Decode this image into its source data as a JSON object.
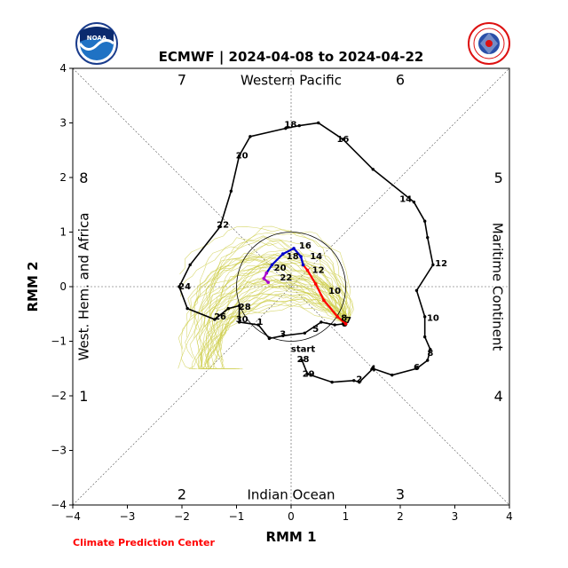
{
  "title": "ECMWF | 2024-04-08 to 2024-04-22",
  "credit": "Climate Prediction Center",
  "logos": {
    "left": "noaa-logo",
    "right": "national-weather-service-logo",
    "left_text": "NOAA"
  },
  "chart_data": {
    "type": "line",
    "title": "ECMWF | 2024-04-08 to 2024-04-22",
    "xlabel": "RMM 1",
    "ylabel": "RMM 2",
    "xlim": [
      -4,
      4
    ],
    "ylim": [
      -4,
      4
    ],
    "xticks": [
      -4,
      -3,
      -2,
      -1,
      0,
      1,
      2,
      3,
      4
    ],
    "yticks": [
      -4,
      -3,
      -2,
      -1,
      0,
      1,
      2,
      3,
      4
    ],
    "unit_circle_radius": 1,
    "region_labels": [
      "Western Pacific",
      "Maritime Continent",
      "Indian Ocean",
      "West. Hem. and Africa"
    ],
    "phase_labels": [
      {
        "phase": "1",
        "x": -3.8,
        "y": -2
      },
      {
        "phase": "2",
        "x": -2,
        "y": -3.8
      },
      {
        "phase": "3",
        "x": 2,
        "y": -3.8
      },
      {
        "phase": "4",
        "x": 3.8,
        "y": -2
      },
      {
        "phase": "5",
        "x": 3.8,
        "y": 2
      },
      {
        "phase": "6",
        "x": 2,
        "y": 3.8
      },
      {
        "phase": "7",
        "x": -2,
        "y": 3.8
      },
      {
        "phase": "8",
        "x": -3.8,
        "y": 2
      }
    ],
    "observed": {
      "color": "#000000",
      "start_label": "start",
      "points": [
        [
          0.2,
          -1.35
        ],
        [
          0.3,
          -1.6
        ],
        [
          0.75,
          -1.75
        ],
        [
          1.15,
          -1.72
        ],
        [
          1.25,
          -1.75
        ],
        [
          1.5,
          -1.5
        ],
        [
          1.85,
          -1.62
        ],
        [
          2.3,
          -1.5
        ],
        [
          2.5,
          -1.35
        ],
        [
          2.55,
          -1.15
        ],
        [
          2.45,
          -0.92
        ],
        [
          2.45,
          -0.55
        ],
        [
          2.3,
          -0.07
        ],
        [
          2.6,
          0.4
        ],
        [
          2.5,
          0.9
        ],
        [
          2.45,
          1.2
        ],
        [
          2.25,
          1.55
        ],
        [
          1.5,
          2.15
        ],
        [
          0.95,
          2.7
        ],
        [
          0.5,
          3.0
        ],
        [
          0.15,
          2.95
        ],
        [
          -0.1,
          2.9
        ],
        [
          -0.75,
          2.75
        ],
        [
          -0.95,
          2.4
        ],
        [
          -1.1,
          1.75
        ],
        [
          -1.3,
          1.1
        ],
        [
          -1.85,
          0.4
        ],
        [
          -2.05,
          0.0
        ],
        [
          -1.9,
          -0.4
        ],
        [
          -1.4,
          -0.6
        ],
        [
          -1.15,
          -0.4
        ],
        [
          -0.95,
          -0.35
        ],
        [
          -0.95,
          -0.65
        ],
        [
          -0.6,
          -0.7
        ],
        [
          -0.4,
          -0.95
        ],
        [
          -0.15,
          -0.9
        ],
        [
          0.25,
          -0.85
        ],
        [
          0.55,
          -0.65
        ],
        [
          0.8,
          -0.7
        ],
        [
          0.98,
          -0.68
        ]
      ],
      "labels": [
        {
          "text": "start",
          "x": 0.22,
          "y": -1.15
        },
        {
          "text": "28",
          "x": 0.22,
          "y": -1.33
        },
        {
          "text": "29",
          "x": 0.32,
          "y": -1.6
        },
        {
          "text": "2",
          "x": 1.25,
          "y": -1.7
        },
        {
          "text": "4",
          "x": 1.5,
          "y": -1.5
        },
        {
          "text": "6",
          "x": 2.3,
          "y": -1.48
        },
        {
          "text": "8",
          "x": 2.55,
          "y": -1.22
        },
        {
          "text": "10",
          "x": 2.6,
          "y": -0.58
        },
        {
          "text": "12",
          "x": 2.75,
          "y": 0.42
        },
        {
          "text": "14",
          "x": 2.1,
          "y": 1.6
        },
        {
          "text": "16",
          "x": 0.95,
          "y": 2.7
        },
        {
          "text": "18",
          "x": -0.01,
          "y": 2.97
        },
        {
          "text": "20",
          "x": -0.9,
          "y": 2.4
        },
        {
          "text": "22",
          "x": -1.25,
          "y": 1.13
        },
        {
          "text": "24",
          "x": -1.95,
          "y": 0.0
        },
        {
          "text": "26",
          "x": -1.3,
          "y": -0.55
        },
        {
          "text": "28",
          "x": -0.85,
          "y": -0.37
        },
        {
          "text": "30",
          "x": -0.9,
          "y": -0.6
        },
        {
          "text": "1",
          "x": -0.57,
          "y": -0.65
        },
        {
          "text": "3",
          "x": -0.15,
          "y": -0.87
        },
        {
          "text": "5",
          "x": 0.45,
          "y": -0.78
        },
        {
          "text": "7",
          "x": 1.05,
          "y": -0.62
        }
      ]
    },
    "forecast": {
      "colors": {
        "week1": "#ff0000",
        "week2": "#0000cc",
        "week3": "#aa00cc"
      },
      "week1": [
        [
          1.0,
          -0.68
        ],
        [
          0.85,
          -0.55
        ],
        [
          0.6,
          -0.25
        ],
        [
          0.45,
          0.05
        ],
        [
          0.3,
          0.3
        ],
        [
          0.22,
          0.4
        ]
      ],
      "week2": [
        [
          0.22,
          0.4
        ],
        [
          0.18,
          0.55
        ],
        [
          0.05,
          0.7
        ],
        [
          -0.15,
          0.6
        ],
        [
          -0.35,
          0.4
        ],
        [
          -0.45,
          0.25
        ]
      ],
      "week3": [
        [
          -0.45,
          0.25
        ],
        [
          -0.5,
          0.15
        ],
        [
          -0.42,
          0.08
        ]
      ],
      "labels": [
        {
          "text": "8",
          "x": 0.85,
          "y": -0.58
        },
        {
          "text": "10",
          "x": 0.62,
          "y": -0.08
        },
        {
          "text": "12",
          "x": 0.32,
          "y": 0.3
        },
        {
          "text": "14",
          "x": 0.28,
          "y": 0.55
        },
        {
          "text": "16",
          "x": 0.08,
          "y": 0.75
        },
        {
          "text": "18",
          "x": -0.15,
          "y": 0.55
        },
        {
          "text": "20",
          "x": -0.38,
          "y": 0.34
        },
        {
          "text": "22",
          "x": -0.27,
          "y": 0.16
        }
      ]
    },
    "ensemble_color": "#cccc44"
  }
}
